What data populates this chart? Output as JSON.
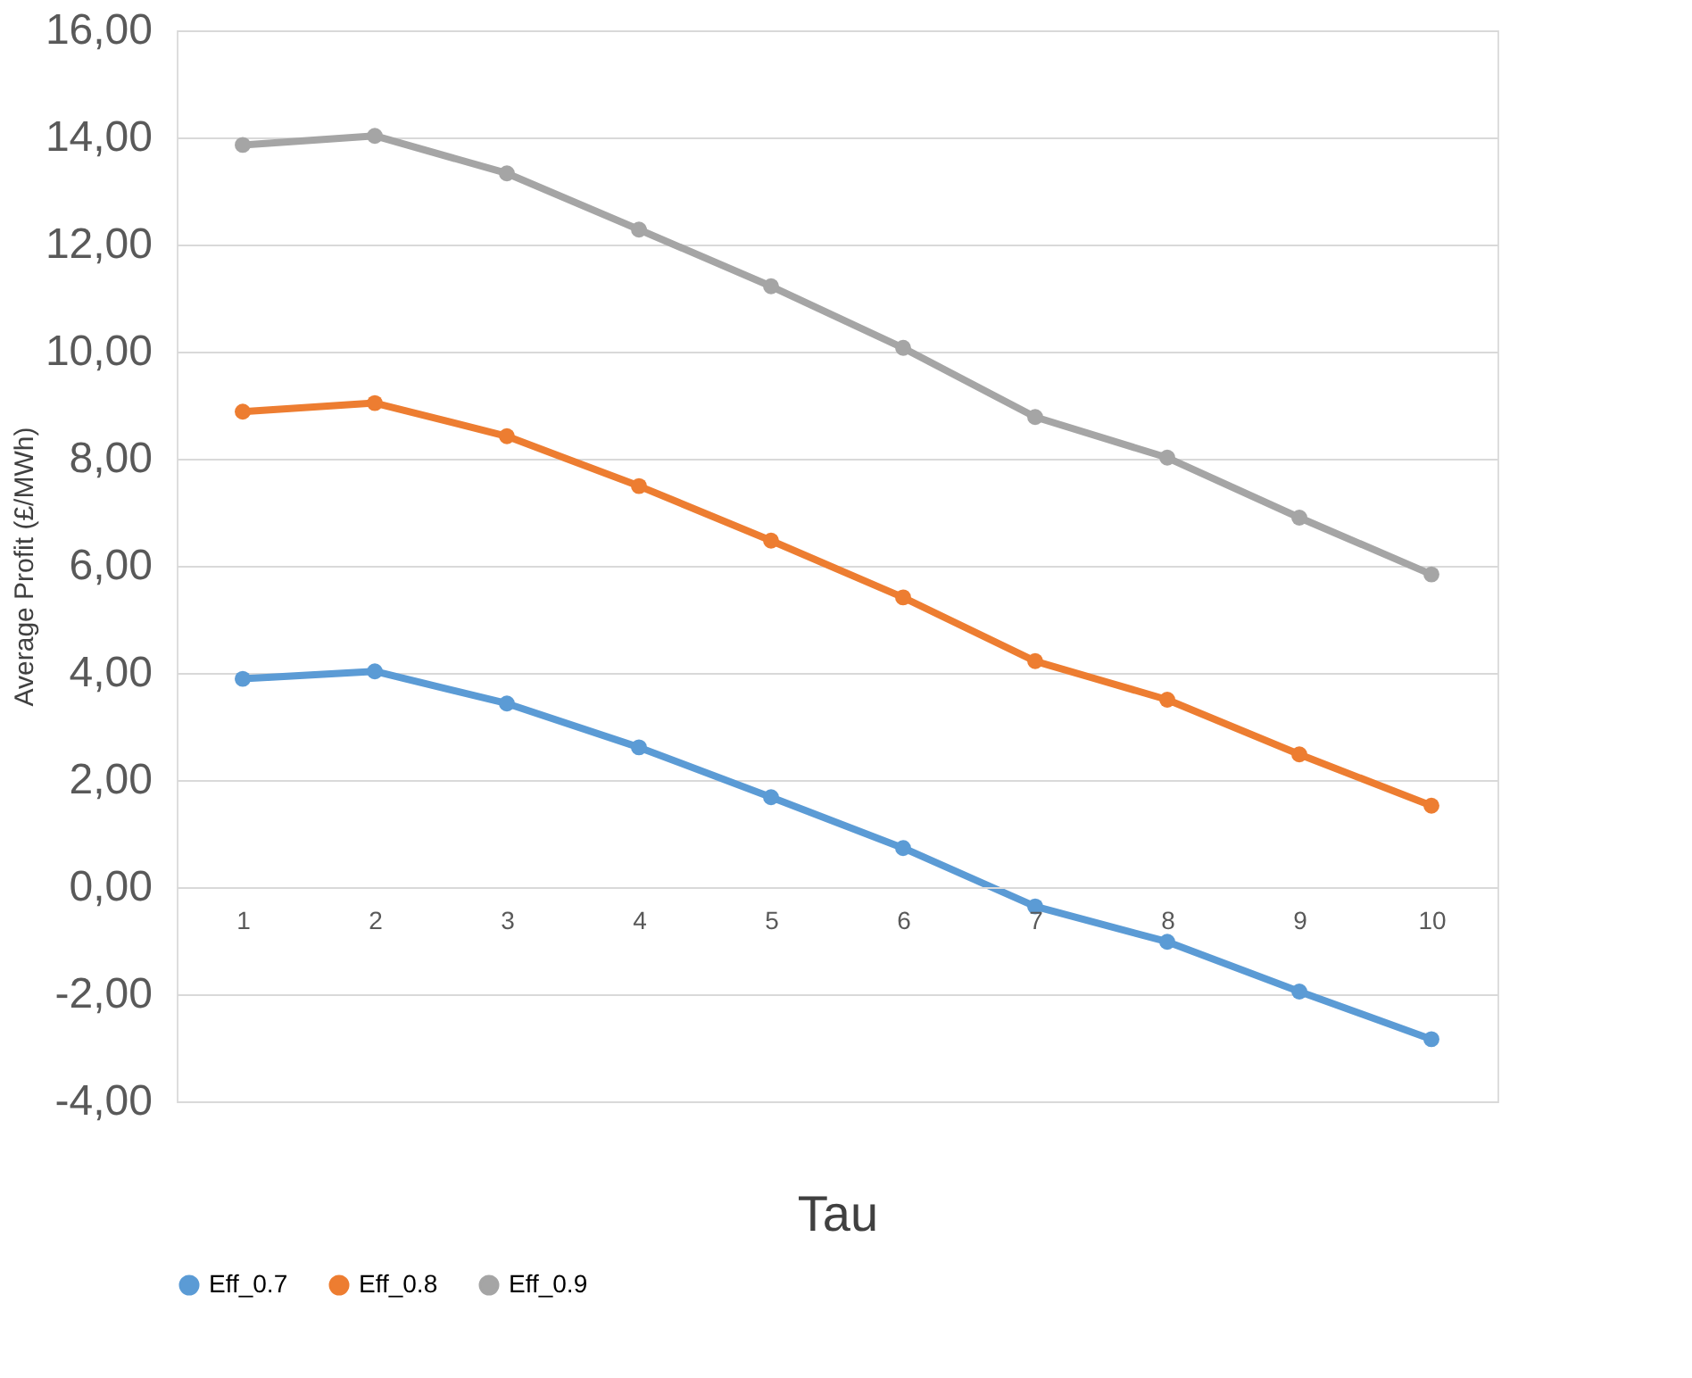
{
  "chart_data": {
    "type": "line",
    "xlabel": "Tau",
    "ylabel": "Average Profit (£/MWh)",
    "categories": [
      "1",
      "2",
      "3",
      "4",
      "5",
      "6",
      "7",
      "8",
      "9",
      "10"
    ],
    "series": [
      {
        "name": "Eff_0.7",
        "color": "#5b9bd5",
        "values": [
          3.89,
          4.03,
          3.43,
          2.61,
          1.68,
          0.73,
          -0.36,
          -1.02,
          -1.95,
          -2.84
        ]
      },
      {
        "name": "Eff_0.8",
        "color": "#ed7d31",
        "values": [
          8.88,
          9.04,
          8.42,
          7.49,
          6.47,
          5.41,
          4.22,
          3.5,
          2.48,
          1.52
        ]
      },
      {
        "name": "Eff_0.9",
        "color": "#a5a5a5",
        "values": [
          13.86,
          14.03,
          13.33,
          12.28,
          11.22,
          10.07,
          8.78,
          8.02,
          6.9,
          5.84
        ]
      }
    ],
    "ylim": [
      -4,
      16
    ],
    "yticks": [
      {
        "value": -4,
        "label": "-4,00"
      },
      {
        "value": -2,
        "label": "-2,00"
      },
      {
        "value": 0,
        "label": "0,00"
      },
      {
        "value": 2,
        "label": "2,00"
      },
      {
        "value": 4,
        "label": "4,00"
      },
      {
        "value": 6,
        "label": "6,00"
      },
      {
        "value": 8,
        "label": "8,00"
      },
      {
        "value": 10,
        "label": "10,00"
      },
      {
        "value": 12,
        "label": "12,00"
      },
      {
        "value": 14,
        "label": "14,00"
      },
      {
        "value": 16,
        "label": "16,00"
      }
    ],
    "grid": "y",
    "legend": "bottom",
    "marker": "circle",
    "line_style": "solid"
  }
}
